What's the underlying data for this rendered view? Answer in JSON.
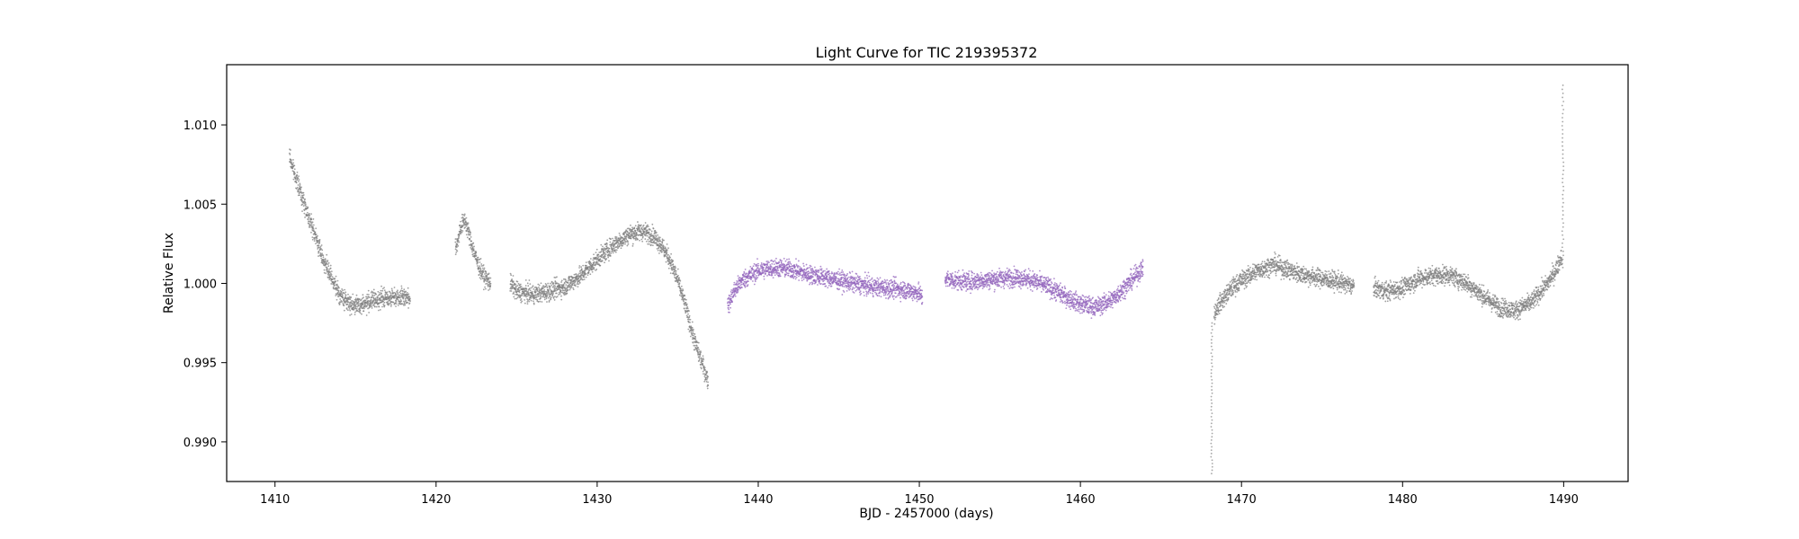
{
  "chart_data": {
    "type": "scatter",
    "title": "Light Curve for TIC 219395372",
    "xlabel": "BJD - 2457000 (days)",
    "ylabel": "Relative Flux",
    "xlim": [
      1407,
      1494
    ],
    "ylim": [
      0.9875,
      1.0138
    ],
    "x_ticks": [
      1410,
      1420,
      1430,
      1440,
      1450,
      1460,
      1470,
      1480,
      1490
    ],
    "x_tick_labels": [
      "1410",
      "1420",
      "1430",
      "1440",
      "1450",
      "1460",
      "1470",
      "1480",
      "1490"
    ],
    "y_ticks": [
      0.99,
      0.995,
      1.0,
      1.005,
      1.01
    ],
    "y_tick_labels": [
      "0.990",
      "0.995",
      "1.000",
      "1.005",
      "1.010"
    ],
    "grid": false,
    "colors": {
      "base": "#808080",
      "highlight": "#9467bd"
    },
    "series": [
      {
        "color": "#808080",
        "segments": [
          {
            "x": [
              1410.9,
              1411.5,
              1412.0,
              1412.5,
              1413.0,
              1413.5,
              1414.0,
              1414.5,
              1415.0,
              1415.5,
              1416.0,
              1417.0,
              1418.0,
              1418.4
            ],
            "y": [
              1.008,
              1.006,
              1.0045,
              1.003,
              1.0015,
              1.0003,
              0.9993,
              0.9988,
              0.9986,
              0.9987,
              0.9989,
              0.9991,
              0.9992,
              0.999
            ]
          },
          {
            "x": [
              1421.2,
              1421.5,
              1421.8,
              1422.2,
              1422.6,
              1423.0,
              1423.4
            ],
            "y": [
              1.002,
              1.0035,
              1.004,
              1.0025,
              1.0012,
              1.0004,
              1.0
            ]
          },
          {
            "x": [
              1424.6,
              1425.0,
              1426.0,
              1427.0,
              1428.0,
              1429.0,
              1430.0,
              1431.0,
              1432.0,
              1432.8,
              1433.5,
              1434.0,
              1434.5,
              1435.0,
              1435.5,
              1436.0,
              1436.5,
              1436.9
            ],
            "y": [
              1.0,
              0.9995,
              0.9993,
              0.9995,
              0.9998,
              1.0005,
              1.0015,
              1.0024,
              1.0031,
              1.0033,
              1.003,
              1.0024,
              1.0015,
              1.0002,
              0.9985,
              0.9965,
              0.995,
              0.9938
            ]
          },
          {
            "x": [
              1468.3,
              1468.5,
              1469.0,
              1469.5,
              1470.0,
              1471.0,
              1472.0,
              1473.0,
              1474.0,
              1475.0,
              1476.0,
              1477.0
            ],
            "y": [
              0.998,
              0.9985,
              0.9992,
              0.9998,
              1.0002,
              1.0008,
              1.0012,
              1.0008,
              1.0005,
              1.0003,
              1.0001,
              0.9998
            ]
          },
          {
            "x": [
              1478.2,
              1479.0,
              1480.0,
              1481.0,
              1482.0,
              1483.0,
              1484.0,
              1485.0,
              1486.0,
              1487.0,
              1488.0,
              1489.0,
              1489.5,
              1489.9
            ],
            "y": [
              0.9997,
              0.9995,
              0.9997,
              1.0003,
              1.0005,
              1.0005,
              1.0,
              0.9992,
              0.9985,
              0.9983,
              0.9988,
              1.0,
              1.0008,
              1.0018
            ]
          }
        ]
      },
      {
        "color": "#9467bd",
        "segments": [
          {
            "x": [
              1438.1,
              1438.5,
              1439.0,
              1440.0,
              1441.0,
              1442.0,
              1443.0,
              1444.0,
              1445.0,
              1446.0,
              1447.0,
              1448.0,
              1449.0,
              1450.0,
              1450.2
            ],
            "y": [
              0.9985,
              0.9995,
              1.0002,
              1.0008,
              1.001,
              1.0009,
              1.0006,
              1.0004,
              1.0002,
              1.0,
              0.9998,
              0.9997,
              0.9996,
              0.9994,
              0.999
            ]
          },
          {
            "x": [
              1451.6,
              1452.0,
              1453.0,
              1454.0,
              1455.0,
              1456.0,
              1457.0,
              1458.0,
              1459.0,
              1460.0,
              1461.0,
              1462.0,
              1463.0,
              1463.9
            ],
            "y": [
              1.0003,
              1.0002,
              1.0001,
              1.0002,
              1.0003,
              1.0004,
              1.0002,
              0.9998,
              0.9992,
              0.9987,
              0.9985,
              0.999,
              1.0,
              1.001
            ]
          }
        ]
      }
    ],
    "spikes": [
      {
        "x": 1468.15,
        "y_min": 0.988,
        "y_max": 0.9975,
        "color": "#808080"
      },
      {
        "x": 1489.95,
        "y_min": 1.001,
        "y_max": 1.0125,
        "color": "#808080"
      }
    ]
  }
}
